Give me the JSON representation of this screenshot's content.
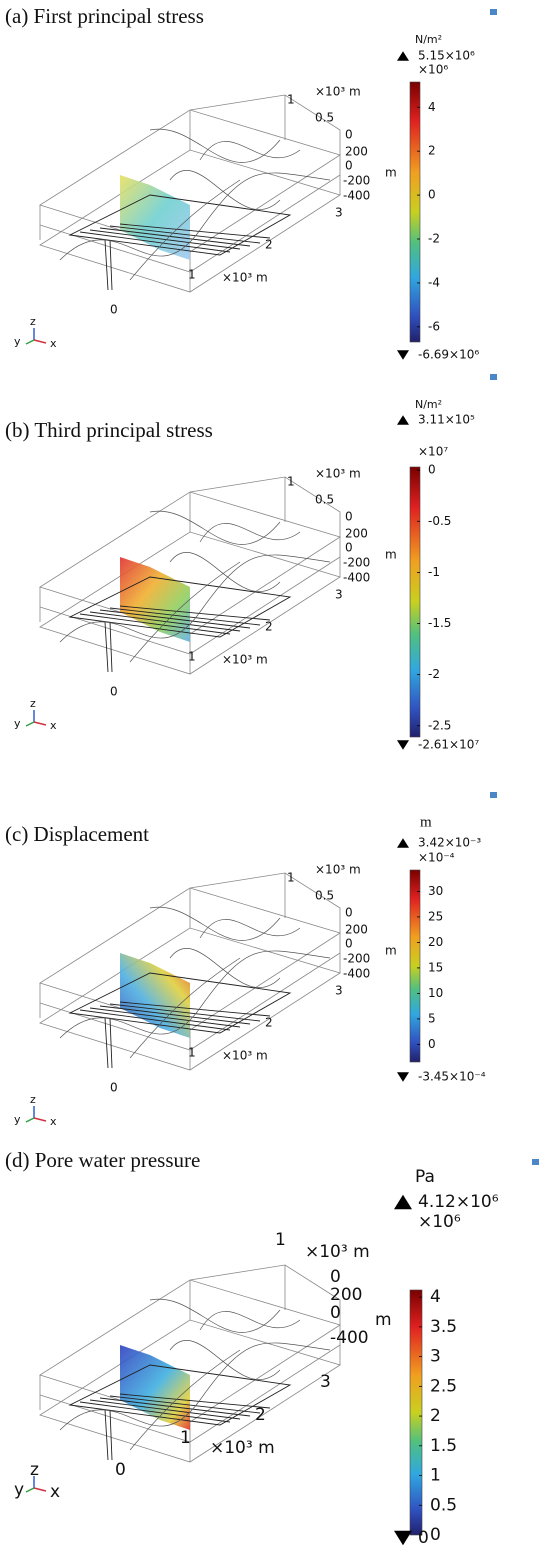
{
  "panels": [
    {
      "title": "(a) First principal stress",
      "unit": "N/m²",
      "max": {
        "value": 5.15,
        "label": "5.15×10⁶"
      },
      "multiplier": "×10⁶",
      "ticks": [
        4,
        2,
        0,
        -2,
        -4,
        -6
      ],
      "min": {
        "value": -6.69,
        "label": "-6.69×10⁶"
      },
      "axis_labels": [
        "×10³ m",
        "1",
        "0.5",
        "0",
        "200",
        "0",
        "-200",
        "-400",
        "m",
        "3",
        "2",
        "1",
        "×10³ m",
        "0"
      ],
      "triad": [
        "y",
        "z",
        "x"
      ]
    },
    {
      "title": "(b) Third principal stress",
      "unit": "N/m²",
      "max": {
        "value": 0.0311,
        "label": "3.11×10⁵"
      },
      "multiplier": "×10⁷",
      "ticks": [
        0,
        -0.5,
        -1,
        -1.5,
        -2,
        -2.5
      ],
      "min": {
        "value": -2.61,
        "label": "-2.61×10⁷"
      },
      "axis_labels": [
        "×10³ m",
        "1",
        "0.5",
        "0",
        "200",
        "0",
        "-200",
        "-400",
        "m",
        "3",
        "2",
        "1",
        "×10³ m",
        "0"
      ],
      "triad": [
        "y",
        "z",
        "x"
      ]
    },
    {
      "title": "(c) Displacement",
      "unit": "m",
      "max": {
        "value": 34.2,
        "label": "3.42×10⁻³"
      },
      "multiplier": "×10⁻⁴",
      "ticks": [
        30,
        25,
        20,
        15,
        10,
        5,
        0
      ],
      "min": {
        "value": -3.45,
        "label": "-3.45×10⁻⁴"
      },
      "axis_labels": [
        "×10³ m",
        "1",
        "0.5",
        "0",
        "200",
        "0",
        "-200",
        "-400",
        "m",
        "3",
        "2",
        "1",
        "×10³ m",
        "0"
      ],
      "triad": [
        "y",
        "z",
        "x"
      ]
    },
    {
      "title": "(d) Pore water pressure",
      "unit": "Pa",
      "max": {
        "value": 4.12,
        "label": "4.12×10⁶"
      },
      "multiplier": "×10⁶",
      "ticks": [
        4,
        3.5,
        3,
        2.5,
        2,
        1.5,
        1,
        0.5,
        0
      ],
      "min": {
        "value": 0,
        "label": "0"
      },
      "axis_labels": [
        "×10³ m",
        "1",
        "0",
        "200",
        "0",
        "-400",
        "m",
        "3",
        "2",
        "1",
        "×10³ m",
        "0"
      ],
      "triad": [
        "y",
        "z",
        "x"
      ]
    }
  ]
}
